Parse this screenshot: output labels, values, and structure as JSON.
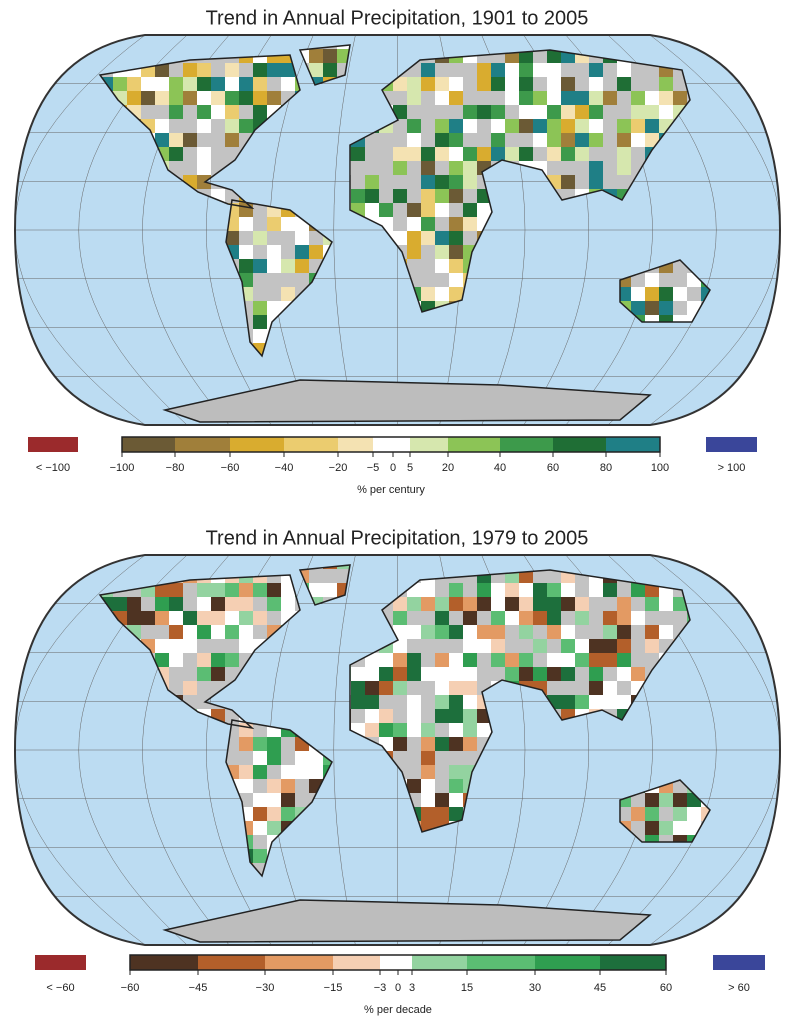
{
  "panels": [
    {
      "title": "Trend in Annual Precipitation, 1901 to 2005",
      "below_label": "< −100",
      "above_label": "> 100",
      "below_color": "#9b2a2c",
      "above_color": "#3a469a",
      "ticks": [
        "−100",
        "−80",
        "−60",
        "−40",
        "−20",
        "−5",
        "0",
        "5",
        "20",
        "40",
        "60",
        "80",
        "100"
      ],
      "colors": [
        "#6b5a35",
        "#a07f3a",
        "#d9ac2f",
        "#ebcc6f",
        "#f4e2b2",
        "#ffffff",
        "#d6e7ae",
        "#8cc456",
        "#3d9a4b",
        "#1f6e35",
        "#1f7f86"
      ],
      "unit": "% per century"
    },
    {
      "title": "Trend in Annual Precipitation, 1979 to 2005",
      "below_label": "< −60",
      "above_label": "> 60",
      "below_color": "#9b2a2c",
      "above_color": "#3a469a",
      "ticks": [
        "−60",
        "−45",
        "−30",
        "−15",
        "−3",
        "0",
        "3",
        "15",
        "30",
        "45",
        "60"
      ],
      "colors": [
        "#4e3322",
        "#b35f2a",
        "#e39a63",
        "#f5cfb3",
        "#ffffff",
        "#93d3a0",
        "#5bbd73",
        "#2f9e50",
        "#1d6f3c"
      ],
      "unit": "% per decade"
    }
  ]
}
